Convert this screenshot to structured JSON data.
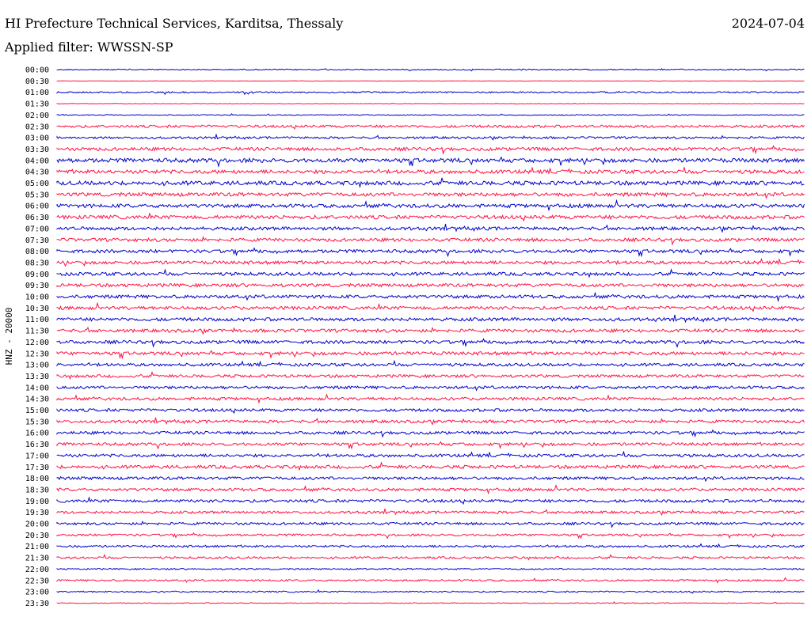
{
  "header": {
    "station": "HI Prefecture Technical Services, Karditsa, Thessaly",
    "date": "2024-07-04",
    "filter": "Applied filter: WWSSN-SP"
  },
  "colors": {
    "even_trace": "#0000cc",
    "odd_trace": "#ff1144",
    "text": "#000000"
  },
  "chart_data": {
    "type": "line",
    "title": "HI Prefecture Technical Services, Karditsa, Thessaly",
    "ylabel": "HNZ - 20000",
    "xlabel": "",
    "rows": [
      "00:00",
      "00:30",
      "01:00",
      "01:30",
      "02:00",
      "02:30",
      "03:00",
      "03:30",
      "04:00",
      "04:30",
      "05:00",
      "05:30",
      "06:00",
      "06:30",
      "07:00",
      "07:30",
      "08:00",
      "08:30",
      "09:00",
      "09:30",
      "10:00",
      "10:30",
      "11:00",
      "11:30",
      "12:00",
      "12:30",
      "13:00",
      "13:30",
      "14:00",
      "14:30",
      "15:00",
      "15:30",
      "16:00",
      "16:30",
      "17:00",
      "17:30",
      "18:00",
      "18:30",
      "19:00",
      "19:30",
      "20:00",
      "20:30",
      "21:00",
      "21:30",
      "22:00",
      "22:30",
      "23:00",
      "23:30"
    ],
    "noise_level": [
      0.15,
      0.05,
      0.2,
      0.05,
      0.12,
      0.35,
      0.3,
      0.45,
      0.55,
      0.5,
      0.55,
      0.5,
      0.5,
      0.5,
      0.45,
      0.45,
      0.45,
      0.45,
      0.45,
      0.45,
      0.45,
      0.45,
      0.45,
      0.45,
      0.45,
      0.45,
      0.4,
      0.4,
      0.4,
      0.4,
      0.4,
      0.4,
      0.4,
      0.4,
      0.4,
      0.45,
      0.4,
      0.4,
      0.4,
      0.35,
      0.35,
      0.3,
      0.3,
      0.3,
      0.2,
      0.25,
      0.2,
      0.12
    ],
    "series_colors": [
      "#0000cc",
      "#ff1144"
    ]
  }
}
